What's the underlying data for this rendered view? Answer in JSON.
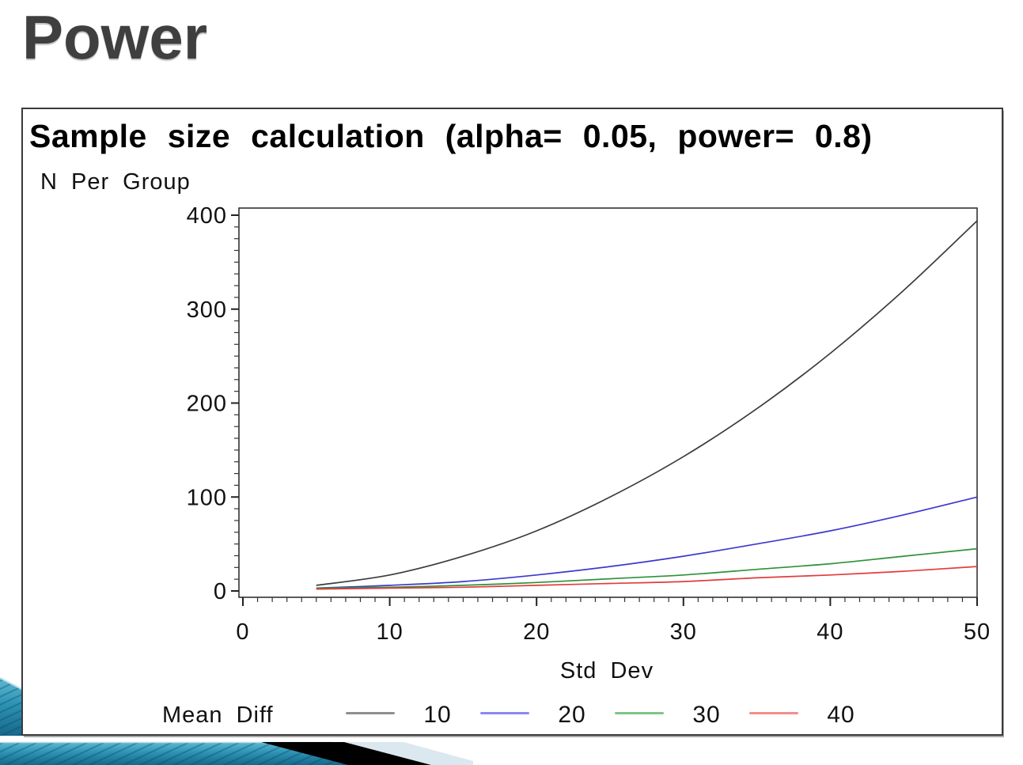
{
  "slide": {
    "title": "Power"
  },
  "chart": {
    "title": "Sample size calculation (alpha= 0.05, power= 0.8)",
    "y_axis_title": "N Per Group",
    "x_axis_title": "Std Dev",
    "legend_title": "Mean Diff"
  },
  "chart_data": {
    "type": "line",
    "title": "Sample size calculation (alpha= 0.05, power= 0.8)",
    "xlabel": "Std Dev",
    "ylabel": "N Per Group",
    "xlim": [
      0,
      50
    ],
    "ylim": [
      0,
      400
    ],
    "x_ticks": [
      0,
      10,
      20,
      30,
      40,
      50
    ],
    "y_ticks": [
      0,
      100,
      200,
      300,
      400
    ],
    "x_minor_step": 1,
    "y_minor_step": 12.5,
    "grid": false,
    "legend_title": "Mean Diff",
    "legend_position": "bottom",
    "x": [
      5,
      10,
      15,
      20,
      25,
      30,
      35,
      40,
      45,
      50
    ],
    "series": [
      {
        "name": "10",
        "color": "#3c3c3c",
        "legend_color": "#8f8f8f",
        "values": [
          6,
          17,
          37,
          64,
          100,
          143,
          194,
          253,
          320,
          394
        ]
      },
      {
        "name": "20",
        "color": "#3a3ace",
        "legend_color": "#8a8aec",
        "values": [
          3,
          6,
          10,
          17,
          26,
          37,
          50,
          64,
          81,
          100
        ]
      },
      {
        "name": "30",
        "color": "#2f9138",
        "legend_color": "#7fc487",
        "values": [
          3,
          4,
          6,
          9,
          13,
          17,
          23,
          29,
          37,
          45
        ]
      },
      {
        "name": "40",
        "color": "#e23c3c",
        "legend_color": "#f48d8d",
        "values": [
          2,
          3,
          4,
          6,
          8,
          10,
          14,
          17,
          21,
          26
        ]
      }
    ]
  },
  "decoration": {
    "teal_dark": "#16688a",
    "teal_mid": "#2d93b5",
    "teal_light": "#5fb9d2",
    "stripe": "rgba(8,70,95,0.35)",
    "highlight": "#b5dfea",
    "black_band": "#000000",
    "pale_band": "#dbe8ef"
  }
}
